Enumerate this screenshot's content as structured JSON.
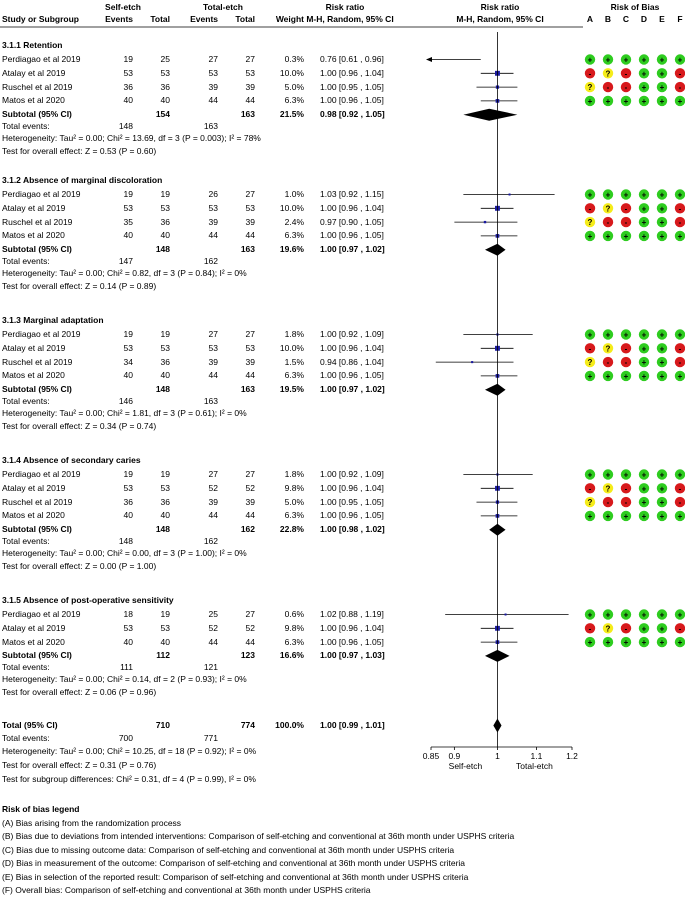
{
  "header": {
    "study_col": "Study or Subgroup",
    "group1": "Self-etch",
    "group2": "Total-etch",
    "events": "Events",
    "total": "Total",
    "weight": "Weight",
    "rr_title": "Risk ratio",
    "rr_method": "M-H, Random, 95% CI",
    "rr_plot_title": "Risk ratio",
    "rr_plot_method": "M-H, Random, 95% CI",
    "rob_title": "Risk of Bias",
    "rob_cols": [
      "A",
      "B",
      "C",
      "D",
      "E",
      "F"
    ]
  },
  "colors": {
    "low": "#2ecc1f",
    "some": "#f5ec1a",
    "high": "#d7191c",
    "square": "#1a1aa0"
  },
  "subgroups": [
    {
      "title": "3.1.1 Retention",
      "studies": [
        {
          "name": "Perdiagao et al 2019",
          "e1": "19",
          "t1": "25",
          "e2": "27",
          "t2": "27",
          "w": "0.3%",
          "ci": "0.76 [0.61 , 0.96]",
          "rr": 0.76,
          "lo": 0.61,
          "hi": 0.96,
          "arrow": true,
          "rob": [
            "+",
            "+",
            "+",
            "+",
            "+",
            "+"
          ]
        },
        {
          "name": "Atalay et al 2019",
          "e1": "53",
          "t1": "53",
          "e2": "53",
          "t2": "53",
          "w": "10.0%",
          "ci": "1.00 [0.96 , 1.04]",
          "rr": 1.0,
          "lo": 0.96,
          "hi": 1.04,
          "arrow": false,
          "rob": [
            "-",
            "?",
            "-",
            "+",
            "+",
            "-"
          ]
        },
        {
          "name": "Ruschel et al 2019",
          "e1": "36",
          "t1": "36",
          "e2": "39",
          "t2": "39",
          "w": "5.0%",
          "ci": "1.00 [0.95 , 1.05]",
          "rr": 1.0,
          "lo": 0.95,
          "hi": 1.05,
          "arrow": false,
          "rob": [
            "?",
            "-",
            "-",
            "+",
            "+",
            "-"
          ]
        },
        {
          "name": "Matos et al 2020",
          "e1": "40",
          "t1": "40",
          "e2": "44",
          "t2": "44",
          "w": "6.3%",
          "ci": "1.00 [0.96 , 1.05]",
          "rr": 1.0,
          "lo": 0.96,
          "hi": 1.05,
          "arrow": false,
          "rob": [
            "+",
            "+",
            "+",
            "+",
            "+",
            "+"
          ]
        }
      ],
      "subtotal": {
        "label": "Subtotal (95% CI)",
        "t1": "154",
        "t2": "163",
        "w": "21.5%",
        "ci": "0.98 [0.92 , 1.05]",
        "rr": 0.98,
        "lo": 0.92,
        "hi": 1.05
      },
      "events": {
        "label": "Total events:",
        "e1": "148",
        "e2": "163"
      },
      "heterogeneity": "Heterogeneity: Tau² = 0.00; Chi² = 13.69, df = 3 (P = 0.003); I² = 78%",
      "overall": "Test for overall effect: Z = 0.53 (P = 0.60)"
    },
    {
      "title": "3.1.2 Absence of marginal discoloration",
      "studies": [
        {
          "name": "Perdiagao et al 2019",
          "e1": "19",
          "t1": "19",
          "e2": "26",
          "t2": "27",
          "w": "1.0%",
          "ci": "1.03 [0.92 , 1.15]",
          "rr": 1.03,
          "lo": 0.92,
          "hi": 1.15,
          "arrow": false,
          "rob": [
            "+",
            "+",
            "+",
            "+",
            "+",
            "+"
          ]
        },
        {
          "name": "Atalay et al 2019",
          "e1": "53",
          "t1": "53",
          "e2": "53",
          "t2": "53",
          "w": "10.0%",
          "ci": "1.00 [0.96 , 1.04]",
          "rr": 1.0,
          "lo": 0.96,
          "hi": 1.04,
          "arrow": false,
          "rob": [
            "-",
            "?",
            "-",
            "+",
            "+",
            "-"
          ]
        },
        {
          "name": "Ruschel et al 2019",
          "e1": "35",
          "t1": "36",
          "e2": "39",
          "t2": "39",
          "w": "2.4%",
          "ci": "0.97 [0.90 , 1.05]",
          "rr": 0.97,
          "lo": 0.9,
          "hi": 1.05,
          "arrow": false,
          "rob": [
            "?",
            "-",
            "-",
            "+",
            "+",
            "-"
          ]
        },
        {
          "name": "Matos et al 2020",
          "e1": "40",
          "t1": "40",
          "e2": "44",
          "t2": "44",
          "w": "6.3%",
          "ci": "1.00 [0.96 , 1.05]",
          "rr": 1.0,
          "lo": 0.96,
          "hi": 1.05,
          "arrow": false,
          "rob": [
            "+",
            "+",
            "+",
            "+",
            "+",
            "+"
          ]
        }
      ],
      "subtotal": {
        "label": "Subtotal (95% CI)",
        "t1": "148",
        "t2": "163",
        "w": "19.6%",
        "ci": "1.00 [0.97 , 1.02]",
        "rr": 1.0,
        "lo": 0.97,
        "hi": 1.02
      },
      "events": {
        "label": "Total events:",
        "e1": "147",
        "e2": "162"
      },
      "heterogeneity": "Heterogeneity: Tau² = 0.00; Chi² = 0.82, df = 3 (P = 0.84); I² = 0%",
      "overall": "Test for overall effect: Z = 0.14 (P = 0.89)"
    },
    {
      "title": "3.1.3 Marginal adaptation",
      "studies": [
        {
          "name": "Perdiagao et al 2019",
          "e1": "19",
          "t1": "19",
          "e2": "27",
          "t2": "27",
          "w": "1.8%",
          "ci": "1.00 [0.92 , 1.09]",
          "rr": 1.0,
          "lo": 0.92,
          "hi": 1.09,
          "arrow": false,
          "rob": [
            "+",
            "+",
            "+",
            "+",
            "+",
            "+"
          ]
        },
        {
          "name": "Atalay et al 2019",
          "e1": "53",
          "t1": "53",
          "e2": "53",
          "t2": "53",
          "w": "10.0%",
          "ci": "1.00 [0.96 , 1.04]",
          "rr": 1.0,
          "lo": 0.96,
          "hi": 1.04,
          "arrow": false,
          "rob": [
            "-",
            "?",
            "-",
            "+",
            "+",
            "-"
          ]
        },
        {
          "name": "Ruschel et al 2019",
          "e1": "34",
          "t1": "36",
          "e2": "39",
          "t2": "39",
          "w": "1.5%",
          "ci": "0.94 [0.86 , 1.04]",
          "rr": 0.94,
          "lo": 0.86,
          "hi": 1.04,
          "arrow": false,
          "rob": [
            "?",
            "-",
            "-",
            "+",
            "+",
            "-"
          ]
        },
        {
          "name": "Matos et al 2020",
          "e1": "40",
          "t1": "40",
          "e2": "44",
          "t2": "44",
          "w": "6.3%",
          "ci": "1.00 [0.96 , 1.05]",
          "rr": 1.0,
          "lo": 0.96,
          "hi": 1.05,
          "arrow": false,
          "rob": [
            "+",
            "+",
            "+",
            "+",
            "+",
            "+"
          ]
        }
      ],
      "subtotal": {
        "label": "Subtotal (95% CI)",
        "t1": "148",
        "t2": "163",
        "w": "19.5%",
        "ci": "1.00 [0.97 , 1.02]",
        "rr": 1.0,
        "lo": 0.97,
        "hi": 1.02
      },
      "events": {
        "label": "Total events:",
        "e1": "146",
        "e2": "163"
      },
      "heterogeneity": "Heterogeneity: Tau² = 0.00; Chi² = 1.81, df = 3 (P = 0.61); I² = 0%",
      "overall": "Test for overall effect: Z = 0.34 (P = 0.74)"
    },
    {
      "title": "3.1.4 Absence of secondary caries",
      "studies": [
        {
          "name": "Perdiagao et al 2019",
          "e1": "19",
          "t1": "19",
          "e2": "27",
          "t2": "27",
          "w": "1.8%",
          "ci": "1.00 [0.92 , 1.09]",
          "rr": 1.0,
          "lo": 0.92,
          "hi": 1.09,
          "arrow": false,
          "rob": [
            "+",
            "+",
            "+",
            "+",
            "+",
            "+"
          ]
        },
        {
          "name": "Atalay et al 2019",
          "e1": "53",
          "t1": "53",
          "e2": "52",
          "t2": "52",
          "w": "9.8%",
          "ci": "1.00 [0.96 , 1.04]",
          "rr": 1.0,
          "lo": 0.96,
          "hi": 1.04,
          "arrow": false,
          "rob": [
            "-",
            "?",
            "-",
            "+",
            "+",
            "-"
          ]
        },
        {
          "name": "Ruschel et al 2019",
          "e1": "36",
          "t1": "36",
          "e2": "39",
          "t2": "39",
          "w": "5.0%",
          "ci": "1.00 [0.95 , 1.05]",
          "rr": 1.0,
          "lo": 0.95,
          "hi": 1.05,
          "arrow": false,
          "rob": [
            "?",
            "-",
            "-",
            "+",
            "+",
            "-"
          ]
        },
        {
          "name": "Matos et al 2020",
          "e1": "40",
          "t1": "40",
          "e2": "44",
          "t2": "44",
          "w": "6.3%",
          "ci": "1.00 [0.96 , 1.05]",
          "rr": 1.0,
          "lo": 0.96,
          "hi": 1.05,
          "arrow": false,
          "rob": [
            "+",
            "+",
            "+",
            "+",
            "+",
            "+"
          ]
        }
      ],
      "subtotal": {
        "label": "Subtotal (95% CI)",
        "t1": "148",
        "t2": "162",
        "w": "22.8%",
        "ci": "1.00 [0.98 , 1.02]",
        "rr": 1.0,
        "lo": 0.98,
        "hi": 1.02
      },
      "events": {
        "label": "Total events:",
        "e1": "148",
        "e2": "162"
      },
      "heterogeneity": "Heterogeneity: Tau² = 0.00; Chi² = 0.00, df = 3 (P = 1.00); I² = 0%",
      "overall": "Test for overall effect: Z = 0.00 (P = 1.00)"
    },
    {
      "title": "3.1.5 Absence of post-operative sensitivity",
      "studies": [
        {
          "name": "Perdiagao et al 2019",
          "e1": "18",
          "t1": "19",
          "e2": "25",
          "t2": "27",
          "w": "0.6%",
          "ci": "1.02 [0.88 , 1.19]",
          "rr": 1.02,
          "lo": 0.88,
          "hi": 1.19,
          "arrow": false,
          "rob": [
            "+",
            "+",
            "+",
            "+",
            "+",
            "+"
          ]
        },
        {
          "name": "Atalay et al 2019",
          "e1": "53",
          "t1": "53",
          "e2": "52",
          "t2": "52",
          "w": "9.8%",
          "ci": "1.00 [0.96 , 1.04]",
          "rr": 1.0,
          "lo": 0.96,
          "hi": 1.04,
          "arrow": false,
          "rob": [
            "-",
            "?",
            "-",
            "+",
            "+",
            "-"
          ]
        },
        {
          "name": "Matos et al 2020",
          "e1": "40",
          "t1": "40",
          "e2": "44",
          "t2": "44",
          "w": "6.3%",
          "ci": "1.00 [0.96 , 1.05]",
          "rr": 1.0,
          "lo": 0.96,
          "hi": 1.05,
          "arrow": false,
          "rob": [
            "+",
            "+",
            "+",
            "+",
            "+",
            "+"
          ]
        }
      ],
      "subtotal": {
        "label": "Subtotal (95% CI)",
        "t1": "112",
        "t2": "123",
        "w": "16.6%",
        "ci": "1.00 [0.97 , 1.03]",
        "rr": 1.0,
        "lo": 0.97,
        "hi": 1.03
      },
      "events": {
        "label": "Total events:",
        "e1": "111",
        "e2": "121"
      },
      "heterogeneity": "Heterogeneity: Tau² = 0.00; Chi² = 0.14, df = 2 (P = 0.93); I² = 0%",
      "overall": "Test for overall effect: Z = 0.06 (P = 0.96)"
    }
  ],
  "total": {
    "label": "Total (95% CI)",
    "t1": "710",
    "t2": "774",
    "w": "100.0%",
    "ci": "1.00 [0.99 , 1.01]",
    "rr": 1.0,
    "lo": 0.99,
    "hi": 1.01,
    "events_label": "Total events:",
    "e1": "700",
    "e2": "771",
    "heterogeneity": "Heterogeneity: Tau² = 0.00; Chi² = 10.25, df = 18 (P = 0.92); I² = 0%",
    "overall": "Test for overall effect: Z = 0.31 (P = 0.76)",
    "subgroup_diff": "Test for subgroup differences: Chi² = 0.31, df = 4 (P = 0.99), I² = 0%"
  },
  "chart_data": {
    "type": "forest",
    "x_scale": "log",
    "xlim": [
      0.85,
      1.2
    ],
    "ticks": [
      0.85,
      0.9,
      1,
      1.1,
      1.2
    ],
    "tick_labels": [
      "0.85",
      "0.9",
      "1",
      "1.1",
      "1.2"
    ],
    "left_label": "Self-etch",
    "right_label": "Total-etch"
  },
  "legend": {
    "title": "Risk of bias legend",
    "items": [
      "(A) Bias arising from the randomization process",
      "(B) Bias due to deviations from intended interventions: Comparison of self-etching and conventional at 36th month under USPHS criteria",
      "(C) Bias due to missing outcome data: Comparison of self-etching and conventional at 36th month under USPHS criteria",
      "(D) Bias in measurement of the outcome: Comparison of self-etching and conventional at 36th month under USPHS criteria",
      "(E) Bias in selection of the reported result: Comparison of self-etching and conventional at 36th month under USPHS criteria",
      "(F) Overall bias: Comparison of self-etching and conventional at 36th month under USPHS criteria"
    ]
  }
}
